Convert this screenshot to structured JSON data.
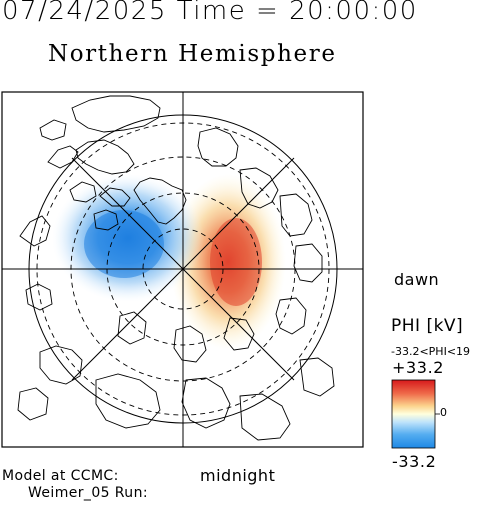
{
  "header": {
    "datetime": "07/24/2025 Time = 20:00:00",
    "title": "Northern Hemisphere"
  },
  "labels": {
    "dawn": "dawn",
    "midnight": "midnight"
  },
  "colorbar": {
    "label": "PHI [kV]",
    "range_text": "-33.2<PHI<19",
    "max_label": "+33.2",
    "zero_label": "0",
    "min_label": "-33.2",
    "colors": {
      "max": "#d7191c",
      "mid": "#ffffdd",
      "min": "#1e88e5"
    }
  },
  "footer": {
    "model_line": "Model at CCMC:",
    "run_line": "Weimer_05 Run:"
  },
  "map": {
    "projection": "north-polar",
    "colors": {
      "positive_cell": "#e0402a",
      "negative_cell": "#1f7fe0",
      "outline": "#000000"
    }
  }
}
